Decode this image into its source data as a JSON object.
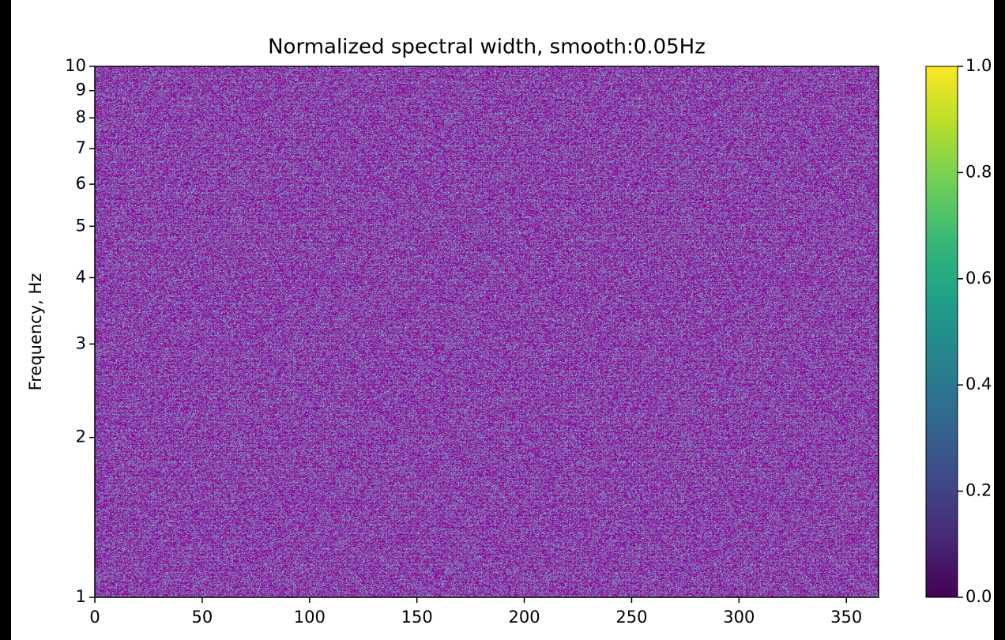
{
  "chart_data": {
    "type": "heatmap",
    "title": "Normalized spectral width, smooth:0.05Hz",
    "y_label": "Frequency, Hz",
    "xlim": [
      0,
      365
    ],
    "xticks": [
      0,
      50,
      100,
      150,
      200,
      250,
      300,
      350
    ],
    "ylim": [
      1,
      10
    ],
    "yscale": "log",
    "yticks": [
      1,
      2,
      3,
      4,
      5,
      6,
      7,
      8,
      9,
      10
    ],
    "colormap": "viridis",
    "clim": [
      0,
      1
    ],
    "cticks": [
      {
        "value": 0,
        "label": "0.0"
      },
      {
        "value": 0.2,
        "label": "0.2"
      },
      {
        "value": 0.4,
        "label": "0.4"
      },
      {
        "value": 0.6,
        "label": "0.6"
      },
      {
        "value": 0.8,
        "label": "0.8"
      },
      {
        "value": 1,
        "label": "1.0"
      }
    ]
  }
}
